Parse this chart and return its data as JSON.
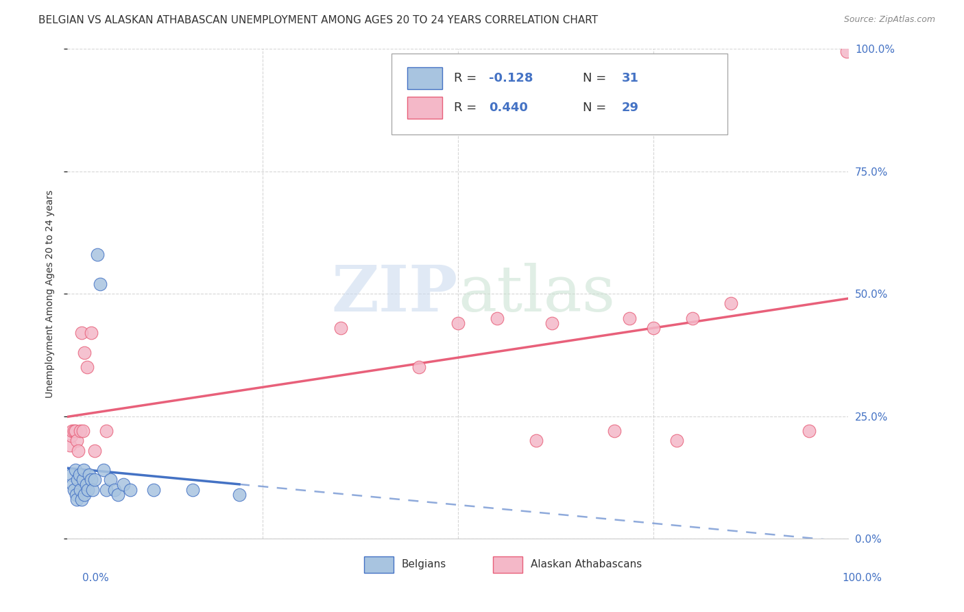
{
  "title": "BELGIAN VS ALASKAN ATHABASCAN UNEMPLOYMENT AMONG AGES 20 TO 24 YEARS CORRELATION CHART",
  "source": "Source: ZipAtlas.com",
  "ylabel": "Unemployment Among Ages 20 to 24 years",
  "watermark_zip": "ZIP",
  "watermark_atlas": "atlas",
  "legend_r1_label": "R = ",
  "legend_r1_val": "-0.128",
  "legend_n1_label": "N = ",
  "legend_n1_val": "31",
  "legend_r2_label": "R = ",
  "legend_r2_val": "0.440",
  "legend_n2_label": "N = ",
  "legend_n2_val": "29",
  "belgian_color": "#a8c4e0",
  "athabascan_color": "#f4b8c8",
  "belgian_line_color": "#4472c4",
  "athabascan_line_color": "#e8607a",
  "text_color": "#333333",
  "tick_color": "#4472c4",
  "grid_color": "#cccccc",
  "background_color": "#ffffff",
  "belgians_x": [
    0.005,
    0.007,
    0.008,
    0.01,
    0.011,
    0.012,
    0.013,
    0.015,
    0.016,
    0.018,
    0.02,
    0.021,
    0.022,
    0.024,
    0.026,
    0.028,
    0.03,
    0.032,
    0.035,
    0.038,
    0.042,
    0.046,
    0.05,
    0.055,
    0.06,
    0.065,
    0.072,
    0.08,
    0.11,
    0.16,
    0.22
  ],
  "belgians_y": [
    0.13,
    0.11,
    0.1,
    0.14,
    0.09,
    0.08,
    0.12,
    0.13,
    0.1,
    0.08,
    0.12,
    0.14,
    0.09,
    0.11,
    0.1,
    0.13,
    0.12,
    0.1,
    0.12,
    0.58,
    0.52,
    0.14,
    0.1,
    0.12,
    0.1,
    0.09,
    0.11,
    0.1,
    0.1,
    0.1,
    0.09
  ],
  "athabascan_x": [
    0.003,
    0.005,
    0.006,
    0.008,
    0.01,
    0.012,
    0.014,
    0.016,
    0.018,
    0.02,
    0.022,
    0.025,
    0.03,
    0.035,
    0.05,
    0.35,
    0.45,
    0.5,
    0.55,
    0.6,
    0.62,
    0.7,
    0.72,
    0.75,
    0.78,
    0.8,
    0.85,
    0.95,
    0.998
  ],
  "athabascan_y": [
    0.19,
    0.21,
    0.22,
    0.22,
    0.22,
    0.2,
    0.18,
    0.22,
    0.42,
    0.22,
    0.38,
    0.35,
    0.42,
    0.18,
    0.22,
    0.43,
    0.35,
    0.44,
    0.45,
    0.2,
    0.44,
    0.22,
    0.45,
    0.43,
    0.2,
    0.45,
    0.48,
    0.22,
    0.995
  ],
  "xlim": [
    0.0,
    1.0
  ],
  "ylim": [
    0.0,
    1.0
  ],
  "yticks": [
    0.0,
    0.25,
    0.5,
    0.75,
    1.0
  ],
  "ytick_labels": [
    "0.0%",
    "25.0%",
    "50.0%",
    "75.0%",
    "100.0%"
  ],
  "xtick_labels_left": "0.0%",
  "xtick_labels_right": "100.0%",
  "legend_label_belgians": "Belgians",
  "legend_label_athabascan": "Alaskan Athabascans"
}
